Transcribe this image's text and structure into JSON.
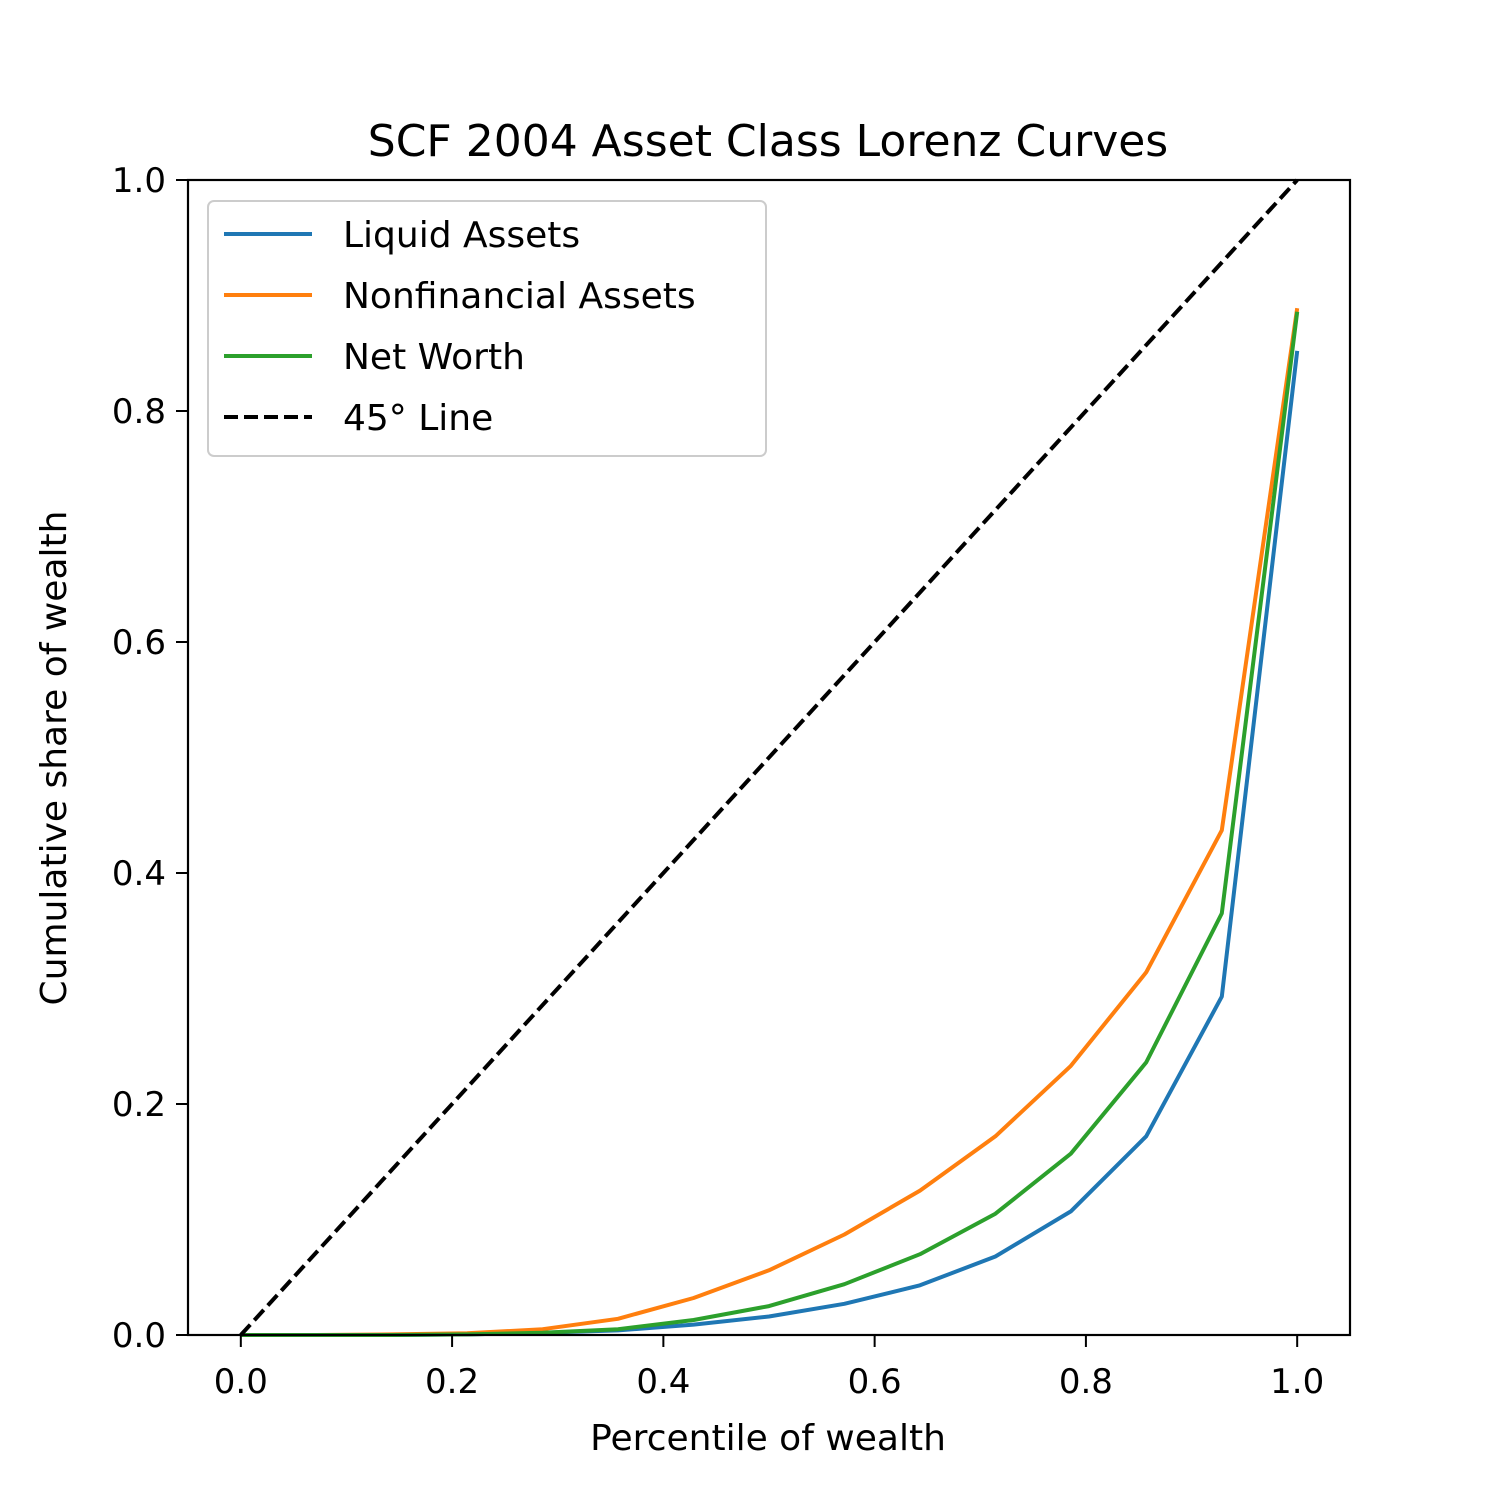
{
  "chart_data": {
    "type": "line",
    "title": "SCF 2004 Asset Class Lorenz Curves",
    "xlabel": "Percentile of wealth",
    "ylabel": "Cumulative share of wealth",
    "xlim": [
      -0.05,
      1.05
    ],
    "ylim": [
      0.0,
      1.0
    ],
    "xticks": [
      0.0,
      0.2,
      0.4,
      0.6,
      0.8,
      1.0
    ],
    "yticks": [
      0.0,
      0.2,
      0.4,
      0.6,
      0.8,
      1.0
    ],
    "xtick_labels": [
      "0.0",
      "0.2",
      "0.4",
      "0.6",
      "0.8",
      "1.0"
    ],
    "ytick_labels": [
      "0.0",
      "0.2",
      "0.4",
      "0.6",
      "0.8",
      "1.0"
    ],
    "grid": false,
    "legend_position": "upper-left",
    "x": [
      0.0,
      0.0714,
      0.1429,
      0.2143,
      0.2857,
      0.3571,
      0.4286,
      0.5,
      0.5714,
      0.6429,
      0.7143,
      0.7857,
      0.8571,
      0.9286,
      1.0
    ],
    "series": [
      {
        "name": "Liquid Assets",
        "color": "#1f77b4",
        "style": "solid",
        "values": [
          0.0,
          0.0,
          0.0,
          0.0005,
          0.002,
          0.004,
          0.009,
          0.016,
          0.027,
          0.043,
          0.068,
          0.107,
          0.172,
          0.293,
          0.852
        ]
      },
      {
        "name": "Nonfinancial Assets",
        "color": "#ff7f0e",
        "style": "solid",
        "values": [
          0.0,
          0.0,
          0.0005,
          0.0015,
          0.005,
          0.014,
          0.032,
          0.056,
          0.087,
          0.125,
          0.172,
          0.233,
          0.314,
          0.437,
          0.889
        ]
      },
      {
        "name": "Net Worth",
        "color": "#2ca02c",
        "style": "solid",
        "values": [
          0.0,
          0.0,
          0.0,
          0.0005,
          0.002,
          0.005,
          0.013,
          0.025,
          0.044,
          0.07,
          0.105,
          0.157,
          0.236,
          0.365,
          0.886
        ]
      },
      {
        "name": "45° Line",
        "color": "#000000",
        "style": "dashed",
        "x": [
          0.0,
          1.0
        ],
        "values": [
          0.0,
          1.0
        ]
      }
    ]
  }
}
